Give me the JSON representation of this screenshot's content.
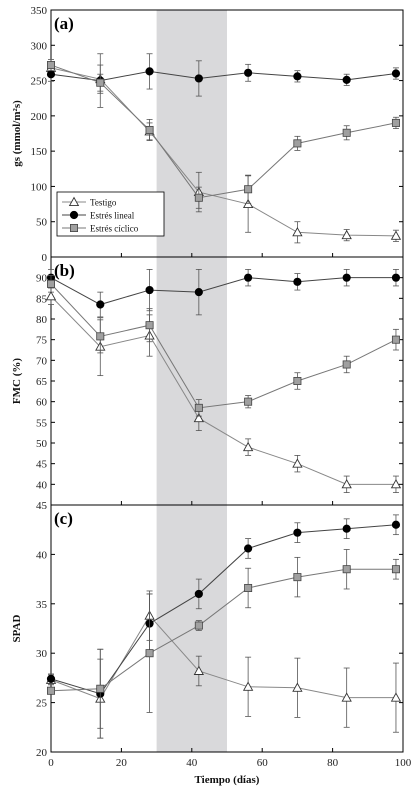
{
  "chart_data": {
    "type": "line",
    "x_label": "Tiempo (días)",
    "x_ticks": [
      0,
      20,
      40,
      60,
      80,
      100
    ],
    "xlim": [
      0,
      100
    ],
    "highlight_band": [
      30,
      50
    ],
    "legend": {
      "placement": "bottom-left of panel (a)",
      "entries": [
        "Testigo",
        "Estrés lineal",
        "Estrés cíclico"
      ]
    },
    "panels": [
      {
        "label": "(a)",
        "ylabel": "gs (mmol/m²s)",
        "ylim": [
          0,
          350
        ],
        "yticks": [
          0,
          50,
          100,
          150,
          200,
          250,
          300,
          350
        ],
        "x": [
          0,
          14,
          28,
          42,
          56,
          70,
          84,
          98
        ],
        "series": [
          {
            "name": "Testigo",
            "marker": "open-triangle",
            "values": [
              268,
              252,
              178,
              92,
              75,
              35,
              31,
              30
            ],
            "errors": [
              8,
              20,
              12,
              28,
              40,
              15,
              8,
              8
            ]
          },
          {
            "name": "Estrés lineal",
            "marker": "filled-circle",
            "values": [
              259,
              250,
              263,
              253,
              261,
              256,
              251,
              260
            ],
            "errors": [
              10,
              38,
              25,
              25,
              12,
              8,
              8,
              8
            ]
          },
          {
            "name": "Estrés cíclico",
            "marker": "gray-square",
            "values": [
              272,
              247,
              180,
              84,
              96,
              161,
              176,
              190
            ],
            "errors": [
              8,
              12,
              15,
              15,
              20,
              10,
              10,
              8
            ]
          }
        ]
      },
      {
        "label": "(b)",
        "ylabel": "FMC (%)",
        "ylim": [
          35,
          95
        ],
        "yticks": [
          40,
          45,
          50,
          55,
          60,
          65,
          70,
          75,
          80,
          85,
          90
        ],
        "x": [
          0,
          14,
          28,
          42,
          56,
          70,
          84,
          98
        ],
        "series": [
          {
            "name": "Testigo",
            "marker": "open-triangle",
            "values": [
              85.5,
              73.3,
              76.0,
              56.0,
              49.0,
              45.0,
              40.0,
              40.0
            ],
            "errors": [
              2,
              7,
              5,
              3,
              2,
              2,
              2,
              2
            ]
          },
          {
            "name": "Estrés lineal",
            "marker": "filled-circle",
            "values": [
              90.0,
              83.5,
              87.0,
              86.5,
              90.0,
              89.0,
              90.0,
              90.0
            ],
            "errors": [
              2,
              3,
              5,
              5.5,
              2,
              2,
              2,
              2
            ]
          },
          {
            "name": "Estrés cíclico",
            "marker": "gray-square",
            "values": [
              88.5,
              75.8,
              78.5,
              58.5,
              60.0,
              65.0,
              69.0,
              75.0
            ],
            "errors": [
              2,
              4,
              4,
              2,
              1.5,
              2,
              2,
              2.5
            ]
          }
        ]
      },
      {
        "label": "(c)",
        "ylabel": "SPAD",
        "ylim": [
          20,
          45
        ],
        "yticks": [
          20,
          25,
          30,
          35,
          40,
          45
        ],
        "x": [
          0,
          14,
          28,
          42,
          56,
          70,
          84,
          98
        ],
        "series": [
          {
            "name": "Testigo",
            "marker": "open-triangle",
            "values": [
              27.3,
              25.4,
              33.8,
              28.2,
              26.6,
              26.5,
              25.5,
              25.5
            ],
            "errors": [
              0.5,
              4.0,
              2.5,
              1.5,
              3.0,
              3.0,
              3.0,
              3.5
            ]
          },
          {
            "name": "Estrés lineal",
            "marker": "filled-circle",
            "values": [
              27.4,
              25.9,
              33.0,
              36.0,
              40.6,
              42.2,
              42.6,
              43.0
            ],
            "errors": [
              0.5,
              4.5,
              3.0,
              1.5,
              1.0,
              1.0,
              1.0,
              1.0
            ]
          },
          {
            "name": "Estrés cíclico",
            "marker": "gray-square",
            "values": [
              26.2,
              26.4,
              30.0,
              32.8,
              36.6,
              37.7,
              38.5,
              38.5
            ],
            "errors": [
              0.3,
              4.0,
              6.0,
              0.5,
              2.0,
              2.0,
              2.0,
              1.0
            ]
          }
        ]
      }
    ]
  }
}
